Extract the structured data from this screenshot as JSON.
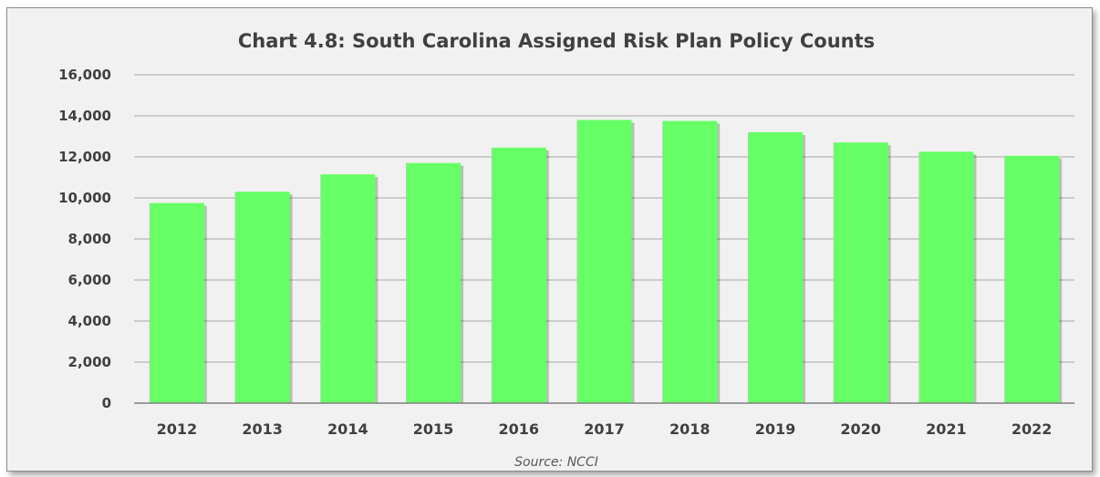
{
  "chart_data": {
    "type": "bar",
    "title": "Chart 4.8: South Carolina Assigned Risk Plan Policy Counts",
    "xlabel": "",
    "ylabel": "",
    "categories": [
      "2012",
      "2013",
      "2014",
      "2015",
      "2016",
      "2017",
      "2018",
      "2019",
      "2020",
      "2021",
      "2022"
    ],
    "values": [
      9750,
      10300,
      11150,
      11700,
      12450,
      13800,
      13750,
      13200,
      12700,
      12250,
      12050
    ],
    "ylim": [
      0,
      16000
    ],
    "yticks": [
      "0",
      "2,000",
      "4,000",
      "6,000",
      "8,000",
      "10,000",
      "12,000",
      "14,000",
      "16,000"
    ],
    "grid": true,
    "legend": "none",
    "bar_color": "#66ff66",
    "source": "Source: NCCI"
  }
}
